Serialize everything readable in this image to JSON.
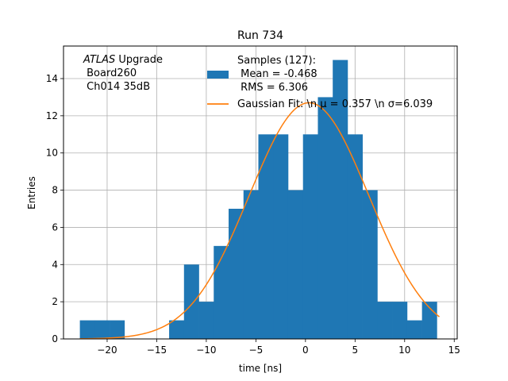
{
  "chart_data": {
    "type": "histogram",
    "title": "Run 734",
    "xlabel": "time [ns]",
    "ylabel": "Entries",
    "xlim": [
      -24.4,
      15.3
    ],
    "ylim": [
      0,
      15.75
    ],
    "grid": true,
    "xticks": [
      -20,
      -15,
      -10,
      -5,
      0,
      5,
      10,
      15
    ],
    "xtick_labels": [
      "−20",
      "−15",
      "−10",
      "−5",
      "0",
      "5",
      "10",
      "15"
    ],
    "yticks": [
      0,
      2,
      4,
      6,
      8,
      10,
      12,
      14
    ],
    "yticks_labels": [
      "0",
      "2",
      "4",
      "6",
      "8",
      "10",
      "12",
      "14"
    ],
    "bin_edges": [
      -22.75,
      -21.25,
      -19.75,
      -18.25,
      -16.75,
      -15.25,
      -13.75,
      -12.25,
      -10.75,
      -9.25,
      -7.75,
      -6.25,
      -4.75,
      -3.25,
      -1.75,
      -0.25,
      1.25,
      2.75,
      4.25,
      5.75,
      7.25,
      8.75,
      10.25,
      11.75,
      13.25
    ],
    "counts": [
      1,
      1,
      1,
      0,
      0,
      0,
      1,
      4,
      2,
      5,
      7,
      8,
      11,
      11,
      8,
      11,
      13,
      15,
      11,
      8,
      2,
      2,
      1,
      2
    ],
    "hist_color": "#1f77b4",
    "fit": {
      "mu": 0.357,
      "sigma": 6.039,
      "amplitude": 12.7,
      "x_range": [
        -22.75,
        13.5
      ],
      "color": "#ff7f0e"
    },
    "legend": {
      "placement": "top-center",
      "hist_label_lines": [
        "Samples (127):",
        " Mean = -0.468",
        " RMS = 6.306"
      ],
      "fit_label": "Gaussian Fit: \\n μ = 0.357 \\n σ=6.039"
    },
    "annotation": {
      "placement": "top-left",
      "line1_italic": "ATLAS",
      "line1_rest": " Upgrade",
      "line2": " Board260",
      "line3": " Ch014 35dB"
    }
  }
}
